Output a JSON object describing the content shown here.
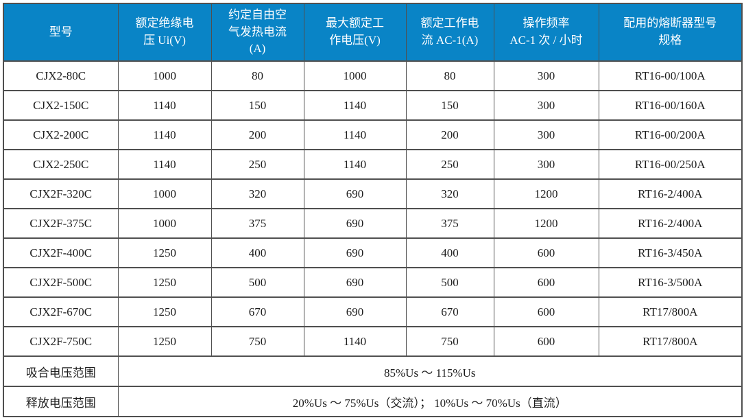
{
  "colors": {
    "header_bg": "#0984c6",
    "header_text": "#ffffff",
    "border": "#4f4f4f",
    "body_text": "#1c1c1c",
    "page_bg": "#ffffff"
  },
  "table": {
    "headers": [
      "型号",
      "额定绝缘电\n压 Ui(V)",
      "约定自由空\n气发热电流\n(A)",
      "最大额定工\n作电压(V)",
      "额定工作电\n流 AC-1(A)",
      "操作频率\nAC-1 次 / 小时",
      "配用的熔断器型号\n规格"
    ],
    "rows": [
      [
        "CJX2-80C",
        "1000",
        "80",
        "1000",
        "80",
        "300",
        "RT16-00/100A"
      ],
      [
        "CJX2-150C",
        "1140",
        "150",
        "1140",
        "150",
        "300",
        "RT16-00/160A"
      ],
      [
        "CJX2-200C",
        "1140",
        "200",
        "1140",
        "200",
        "300",
        "RT16-00/200A"
      ],
      [
        "CJX2-250C",
        "1140",
        "250",
        "1140",
        "250",
        "300",
        "RT16-00/250A"
      ],
      [
        "CJX2F-320C",
        "1000",
        "320",
        "690",
        "320",
        "1200",
        "RT16-2/400A"
      ],
      [
        "CJX2F-375C",
        "1000",
        "375",
        "690",
        "375",
        "1200",
        "RT16-2/400A"
      ],
      [
        "CJX2F-400C",
        "1250",
        "400",
        "690",
        "400",
        "600",
        "RT16-3/450A"
      ],
      [
        "CJX2F-500C",
        "1250",
        "500",
        "690",
        "500",
        "600",
        "RT16-3/500A"
      ],
      [
        "CJX2F-670C",
        "1250",
        "670",
        "690",
        "670",
        "600",
        "RT17/800A"
      ],
      [
        "CJX2F-750C",
        "1250",
        "750",
        "1140",
        "750",
        "600",
        "RT17/800A"
      ]
    ],
    "footer_rows": [
      {
        "label": "吸合电压范围",
        "value": "85%Us ～ 115%Us"
      },
      {
        "label": "释放电压范围",
        "value": "20%Us ～ 75%Us（交流）； 10%Us ～ 70%Us（直流）"
      }
    ]
  }
}
